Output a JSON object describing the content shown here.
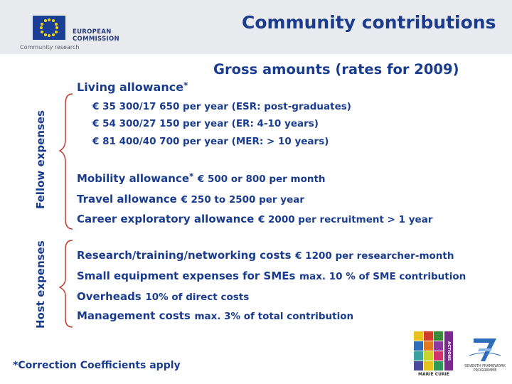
{
  "header": {
    "org_line1": "EUROPEAN",
    "org_line2": "COMMISSION",
    "subtitle_small": "Community research",
    "title": "Community contributions"
  },
  "subtitle": "Gross amounts (rates for 2009)",
  "sections": {
    "fellow_label": "Fellow expenses",
    "host_label": "Host expenses"
  },
  "fellow": {
    "living_label": "Living allowance",
    "living_asterisk": "*",
    "rates": [
      "€ 35 300/17 650 per year (ESR: post-graduates)",
      "€ 54 300/27 150 per year (ER: 4-10 years)",
      "€ 81 400/40 700 per year (MER: > 10 years)"
    ],
    "mobility_label": "Mobility allowance",
    "mobility_asterisk": "*",
    "mobility_value": "€ 500 or 800 per month",
    "travel_label": "Travel allowance",
    "travel_value": "€ 250 to 2500 per year",
    "career_label": "Career exploratory allowance",
    "career_value": "€ 2000 per recruitment > 1 year"
  },
  "host": {
    "research_label": "Research/training/networking costs",
    "research_value": "€ 1200 per researcher-month",
    "equipment_label": "Small equipment expenses for SMEs",
    "equipment_value": "max. 10 % of SME contribution",
    "overheads_label": "Overheads",
    "overheads_value": "10% of direct costs",
    "management_label": "Management costs",
    "management_value": "max. 3% of total contribution"
  },
  "footnote": "*Correction Coefficients apply",
  "logos": {
    "mc_label": "MARIE CURIE",
    "mc_side": "ACTIONS",
    "fp7_line1": "SEVENTH FRAMEWORK",
    "fp7_line2": "PROGRAMME"
  },
  "colors": {
    "text": "#1a3c8e",
    "brace": "#c0392b",
    "header_bg": "#e9eaee",
    "eu_flag": "#1b3f94",
    "eu_stars": "#f5d50a"
  }
}
